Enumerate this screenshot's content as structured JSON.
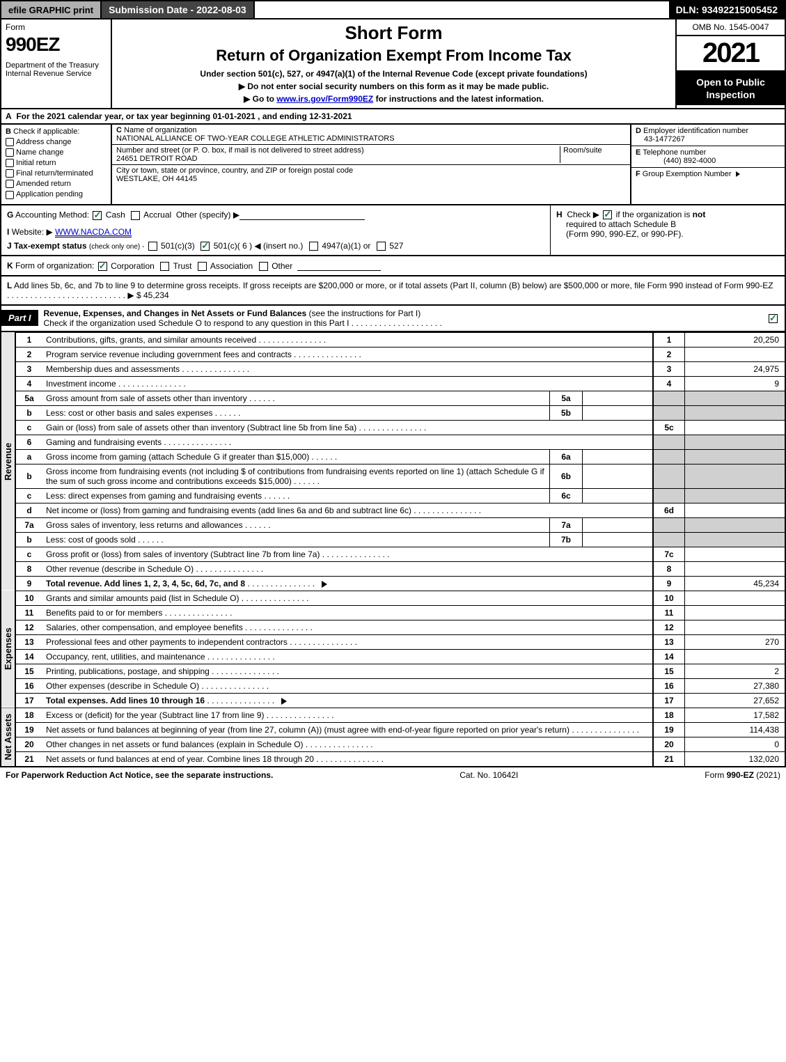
{
  "topbar": {
    "efile": "efile GRAPHIC print",
    "submission": "Submission Date - 2022-08-03",
    "dln": "DLN: 93492215005452"
  },
  "header": {
    "form_label": "Form",
    "form_num": "990EZ",
    "dept": "Department of the Treasury\nInternal Revenue Service",
    "short_form": "Short Form",
    "title": "Return of Organization Exempt From Income Tax",
    "subtitle1": "Under section 501(c), 527, or 4947(a)(1) of the Internal Revenue Code (except private foundations)",
    "subtitle2": "▶ Do not enter social security numbers on this form as it may be made public.",
    "subtitle3_pre": "▶ Go to ",
    "subtitle3_link": "www.irs.gov/Form990EZ",
    "subtitle3_post": " for instructions and the latest information.",
    "omb": "OMB No. 1545-0047",
    "year": "2021",
    "open": "Open to Public Inspection"
  },
  "A": "For the 2021 calendar year, or tax year beginning 01-01-2021 , and ending 12-31-2021",
  "B": {
    "label": "Check if applicable:",
    "opts": [
      "Address change",
      "Name change",
      "Initial return",
      "Final return/terminated",
      "Amended return",
      "Application pending"
    ],
    "checked": []
  },
  "C": {
    "name_lbl": "Name of organization",
    "name": "NATIONAL ALLIANCE OF TWO-YEAR COLLEGE ATHLETIC ADMINISTRATORS",
    "addr_lbl": "Number and street (or P. O. box, if mail is not delivered to street address)",
    "room_lbl": "Room/suite",
    "addr": "24651 DETROIT ROAD",
    "city_lbl": "City or town, state or province, country, and ZIP or foreign postal code",
    "city": "WESTLAKE, OH  44145"
  },
  "D": {
    "lbl": "Employer identification number",
    "val": "43-1477267"
  },
  "E": {
    "lbl": "Telephone number",
    "val": "(440) 892-4000"
  },
  "F": {
    "lbl": "Group Exemption Number",
    "caret": "▶"
  },
  "G": {
    "label": "Accounting Method:",
    "cash": "Cash",
    "accrual": "Accrual",
    "other": "Other (specify) ▶",
    "cash_on": true,
    "accrual_on": false
  },
  "H": {
    "text1": "Check ▶",
    "text2": "if the organization is ",
    "not": "not",
    "text3": "required to attach Schedule B",
    "text4": "(Form 990, 990-EZ, or 990-PF).",
    "on": true
  },
  "I": {
    "label": "Website: ▶",
    "val": "WWW.NACDA.COM"
  },
  "J": {
    "label": "Tax-exempt status",
    "sub": "(check only one) -",
    "opts": [
      "501(c)(3)",
      "501(c)( 6 ) ◀ (insert no.)",
      "4947(a)(1) or",
      "527"
    ],
    "checked_idx": 1
  },
  "K": {
    "label": "Form of organization:",
    "opts": [
      "Corporation",
      "Trust",
      "Association",
      "Other"
    ],
    "checked_idx": 0
  },
  "L": {
    "text": "Add lines 5b, 6c, and 7b to line 9 to determine gross receipts. If gross receipts are $200,000 or more, or if total assets (Part II, column (B) below) are $500,000 or more, file Form 990 instead of Form 990-EZ",
    "amount_label": "▶ $",
    "amount": "45,234"
  },
  "partI": {
    "tag": "Part I",
    "title": "Revenue, Expenses, and Changes in Net Assets or Fund Balances",
    "instr": "(see the instructions for Part I)",
    "check_line": "Check if the organization used Schedule O to respond to any question in this Part I",
    "check_on": true
  },
  "sections": {
    "revenue": {
      "label": "Revenue",
      "lines": [
        {
          "n": "1",
          "t": "Contributions, gifts, grants, and similar amounts received",
          "rn": "1",
          "v": "20,250"
        },
        {
          "n": "2",
          "t": "Program service revenue including government fees and contracts",
          "rn": "2",
          "v": ""
        },
        {
          "n": "3",
          "t": "Membership dues and assessments",
          "rn": "3",
          "v": "24,975"
        },
        {
          "n": "4",
          "t": "Investment income",
          "rn": "4",
          "v": "9"
        },
        {
          "n": "5a",
          "t": "Gross amount from sale of assets other than inventory",
          "sub": "5a",
          "sv": "",
          "rn": "",
          "v": "",
          "shade": true
        },
        {
          "n": "b",
          "t": "Less: cost or other basis and sales expenses",
          "sub": "5b",
          "sv": "",
          "rn": "",
          "v": "",
          "shade": true
        },
        {
          "n": "c",
          "t": "Gain or (loss) from sale of assets other than inventory (Subtract line 5b from line 5a)",
          "rn": "5c",
          "v": ""
        },
        {
          "n": "6",
          "t": "Gaming and fundraising events",
          "rn": "",
          "v": "",
          "shade": true,
          "noval": true
        },
        {
          "n": "a",
          "t": "Gross income from gaming (attach Schedule G if greater than $15,000)",
          "sub": "6a",
          "sv": "",
          "rn": "",
          "v": "",
          "shade": true
        },
        {
          "n": "b",
          "t": "Gross income from fundraising events (not including $                   of contributions from fundraising events reported on line 1) (attach Schedule G if the sum of such gross income and contributions exceeds $15,000)",
          "sub": "6b",
          "sv": "",
          "rn": "",
          "v": "",
          "shade": true
        },
        {
          "n": "c",
          "t": "Less: direct expenses from gaming and fundraising events",
          "sub": "6c",
          "sv": "",
          "rn": "",
          "v": "",
          "shade": true
        },
        {
          "n": "d",
          "t": "Net income or (loss) from gaming and fundraising events (add lines 6a and 6b and subtract line 6c)",
          "rn": "6d",
          "v": ""
        },
        {
          "n": "7a",
          "t": "Gross sales of inventory, less returns and allowances",
          "sub": "7a",
          "sv": "",
          "rn": "",
          "v": "",
          "shade": true
        },
        {
          "n": "b",
          "t": "Less: cost of goods sold",
          "sub": "7b",
          "sv": "",
          "rn": "",
          "v": "",
          "shade": true
        },
        {
          "n": "c",
          "t": "Gross profit or (loss) from sales of inventory (Subtract line 7b from line 7a)",
          "rn": "7c",
          "v": ""
        },
        {
          "n": "8",
          "t": "Other revenue (describe in Schedule O)",
          "rn": "8",
          "v": ""
        },
        {
          "n": "9",
          "t": "Total revenue. Add lines 1, 2, 3, 4, 5c, 6d, 7c, and 8",
          "rn": "9",
          "v": "45,234",
          "bold": true,
          "arrow": true
        }
      ]
    },
    "expenses": {
      "label": "Expenses",
      "lines": [
        {
          "n": "10",
          "t": "Grants and similar amounts paid (list in Schedule O)",
          "rn": "10",
          "v": ""
        },
        {
          "n": "11",
          "t": "Benefits paid to or for members",
          "rn": "11",
          "v": ""
        },
        {
          "n": "12",
          "t": "Salaries, other compensation, and employee benefits",
          "rn": "12",
          "v": ""
        },
        {
          "n": "13",
          "t": "Professional fees and other payments to independent contractors",
          "rn": "13",
          "v": "270"
        },
        {
          "n": "14",
          "t": "Occupancy, rent, utilities, and maintenance",
          "rn": "14",
          "v": ""
        },
        {
          "n": "15",
          "t": "Printing, publications, postage, and shipping",
          "rn": "15",
          "v": "2"
        },
        {
          "n": "16",
          "t": "Other expenses (describe in Schedule O)",
          "rn": "16",
          "v": "27,380"
        },
        {
          "n": "17",
          "t": "Total expenses. Add lines 10 through 16",
          "rn": "17",
          "v": "27,652",
          "bold": true,
          "arrow": true
        }
      ]
    },
    "netassets": {
      "label": "Net Assets",
      "lines": [
        {
          "n": "18",
          "t": "Excess or (deficit) for the year (Subtract line 17 from line 9)",
          "rn": "18",
          "v": "17,582"
        },
        {
          "n": "19",
          "t": "Net assets or fund balances at beginning of year (from line 27, column (A)) (must agree with end-of-year figure reported on prior year's return)",
          "rn": "19",
          "v": "114,438"
        },
        {
          "n": "20",
          "t": "Other changes in net assets or fund balances (explain in Schedule O)",
          "rn": "20",
          "v": "0"
        },
        {
          "n": "21",
          "t": "Net assets or fund balances at end of year. Combine lines 18 through 20",
          "rn": "21",
          "v": "132,020"
        }
      ]
    }
  },
  "footer": {
    "left": "For Paperwork Reduction Act Notice, see the separate instructions.",
    "mid": "Cat. No. 10642I",
    "right_pre": "Form ",
    "right_bold": "990-EZ",
    "right_post": " (2021)"
  },
  "colors": {
    "bg": "#ffffff",
    "black": "#000000",
    "gray_btn": "#b0b0b0",
    "dark_btn": "#444444",
    "shade": "#d0d0d0",
    "link": "#0000cc",
    "check_green": "#1a7a3a"
  }
}
